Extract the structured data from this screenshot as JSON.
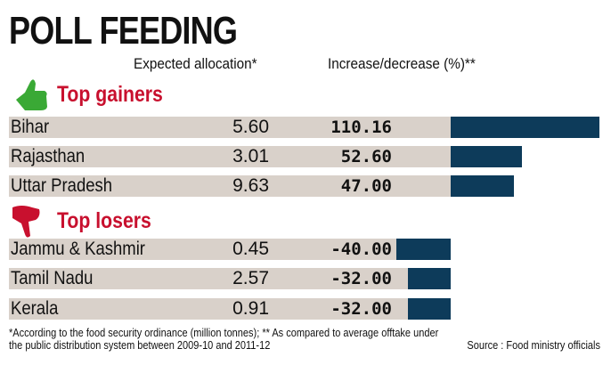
{
  "title": "POLL FEEDING",
  "headers": {
    "allocation": "Expected allocation*",
    "change": "Increase/decrease (%)**"
  },
  "sections": {
    "gainers": "Top gainers",
    "losers": "Top losers"
  },
  "icons": {
    "gainers": "thumbs-up-icon",
    "losers": "thumbs-down-icon"
  },
  "colors": {
    "bar": "#0d3b5a",
    "row": "#d9d1ca",
    "section": "#c8102e",
    "thumbs_up": "#3aa935"
  },
  "chart_data": {
    "type": "bar",
    "title": "POLL FEEDING",
    "categories": [
      "Bihar",
      "Rajasthan",
      "Uttar Pradesh",
      "Jammu & Kashmir",
      "Tamil Nadu",
      "Kerala"
    ],
    "allocation": [
      "5.60",
      "3.01",
      "9.63",
      "0.45",
      "2.57",
      "0.91"
    ],
    "labels": [
      "110.16",
      "52.60",
      "47.00",
      "-40.00",
      "-32.00",
      "-32.00"
    ],
    "values": [
      110.16,
      52.6,
      47.0,
      -40.0,
      -32.0,
      -32.0
    ],
    "groups": [
      "gainers",
      "gainers",
      "gainers",
      "losers",
      "losers",
      "losers"
    ]
  },
  "footnote": {
    "line1": "*According to the food security ordinance (million tonnes); ** As compared to average offtake under",
    "line2": "the public distribution system between 2009-10 and 2011-12",
    "source": "Source : Food ministry officials"
  }
}
